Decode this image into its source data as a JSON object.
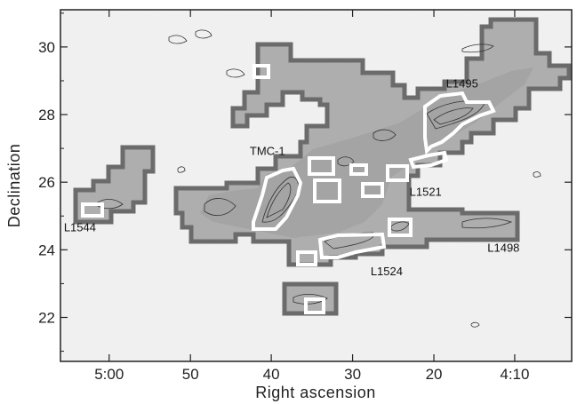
{
  "chart_data": {
    "type": "map",
    "title": "",
    "xlabel": "Right ascension",
    "ylabel": "Declination",
    "x_ticks": [
      {
        "value": 5.0,
        "label": "5:00"
      },
      {
        "value": 4.833,
        "label": "50"
      },
      {
        "value": 4.667,
        "label": "40"
      },
      {
        "value": 4.5,
        "label": "30"
      },
      {
        "value": 4.333,
        "label": "20"
      },
      {
        "value": 4.167,
        "label": "4:10"
      }
    ],
    "y_ticks": [
      22,
      24,
      26,
      28,
      30
    ],
    "xlim": [
      5.1,
      4.05
    ],
    "ylim": [
      20.7,
      31.1
    ],
    "grid": false,
    "colors": {
      "background": "#f1f1f1",
      "survey_fill": "#aeaeae",
      "survey_border": "#6b6b6b",
      "box": "#ffffff"
    },
    "cloud_labels": [
      {
        "name": "L1495",
        "x_ra": 4.275,
        "y_dec": 28.8
      },
      {
        "name": "TMC-1",
        "x_ra": 4.675,
        "y_dec": 26.8
      },
      {
        "name": "L1521",
        "x_ra": 4.35,
        "y_dec": 25.6
      },
      {
        "name": "L1544",
        "x_ra": 5.06,
        "y_dec": 24.55
      },
      {
        "name": "L1524",
        "x_ra": 4.43,
        "y_dec": 23.25
      },
      {
        "name": "L1498",
        "x_ra": 4.19,
        "y_dec": 23.95
      }
    ],
    "white_boxes": [
      {
        "ra_min": 4.648,
        "ra_max": 4.69,
        "dec_min": 29.1,
        "dec_max": 29.6
      },
      {
        "ra_min": 5.055,
        "ra_max": 5.11,
        "dec_min": 25.0,
        "dec_max": 25.4
      }
    ]
  }
}
